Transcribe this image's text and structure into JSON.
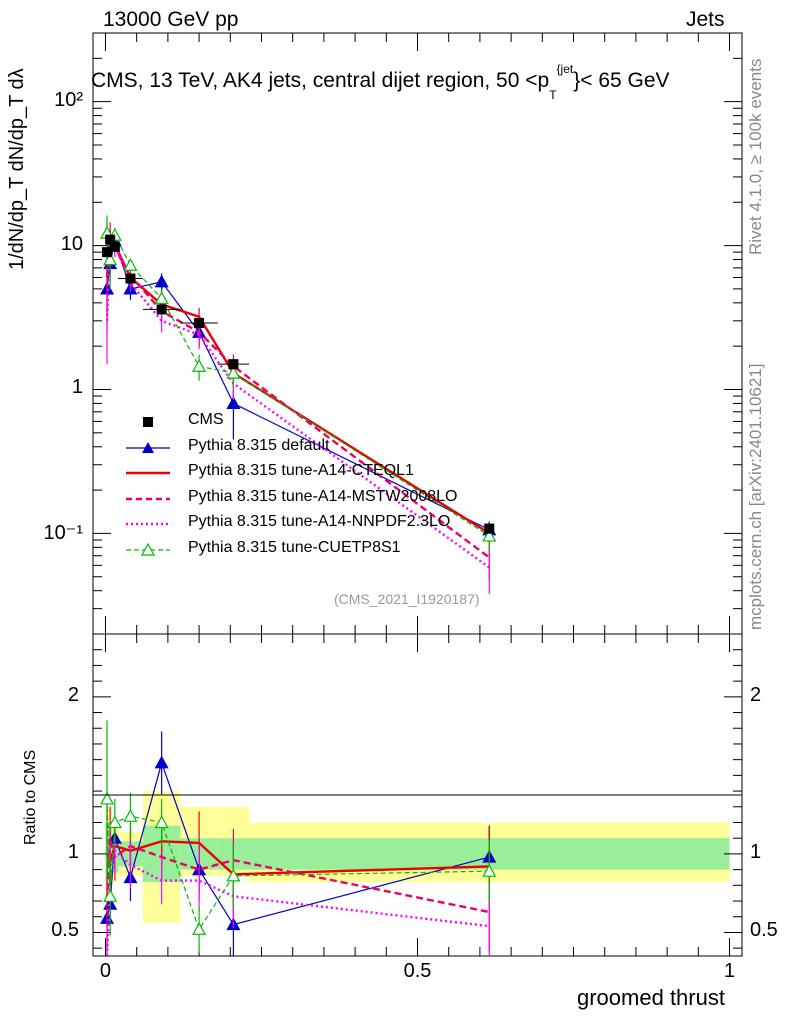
{
  "header": {
    "energy_label": "13000 GeV pp",
    "category_label": "Jets",
    "plot_title": "CMS, 13 TeV, AK4 jets, central dijet region, 50 <p",
    "plot_title_sub": "T",
    "plot_title_sup": "{jet",
    "plot_title_end": "}< 65 GeV",
    "analysis_id": "(CMS_2021_I1920187)"
  },
  "side_labels": {
    "rivet": "Rivet 4.1.0, ≥ 100k events",
    "mcplots": "mcplots.cern.ch [arXiv:2401.10621]"
  },
  "chart_data": [
    {
      "type": "line",
      "panel": "main",
      "ylabel": "1/dN/dp_T dN/dp_T dλ",
      "y_scale": "log",
      "ylim": [
        0.02,
        300
      ],
      "xlim": [
        -0.02,
        1.02
      ],
      "y_ticks": [
        {
          "value": 0.1,
          "label": "10⁻¹"
        },
        {
          "value": 1,
          "label": "1"
        },
        {
          "value": 10,
          "label": "10"
        },
        {
          "value": 100,
          "label": "10²"
        }
      ],
      "x": [
        0.0025,
        0.0075,
        0.015,
        0.04,
        0.09,
        0.15,
        0.205,
        0.615
      ],
      "cms_bin_edges": [
        0,
        0.005,
        0.01,
        0.02,
        0.06,
        0.12,
        0.18,
        0.23,
        1.0
      ],
      "series": [
        {
          "name": "CMS",
          "style": "data",
          "color": "#000000",
          "values": [
            9.0,
            11.0,
            9.8,
            5.9,
            3.6,
            2.9,
            1.5,
            0.108
          ]
        },
        {
          "name": "Pythia 8.315 default",
          "style": "solid-triangle",
          "color": "#0000cc",
          "values": [
            5.0,
            7.5,
            10.8,
            5.0,
            5.6,
            2.5,
            0.8,
            0.106
          ],
          "errors": [
            2.0,
            1.5,
            1.3,
            0.8,
            0.8,
            0.5,
            0.35,
            0.015
          ]
        },
        {
          "name": "Pythia 8.315 tune-A14-CTEQL1",
          "style": "solid",
          "color": "#ee0000",
          "values": [
            9.0,
            10.5,
            10.2,
            6.0,
            3.9,
            3.2,
            1.3,
            0.1
          ],
          "errors": [
            5.5,
            2.5,
            1.3,
            0.7,
            0.6,
            0.5,
            0.25,
            0.02
          ]
        },
        {
          "name": "Pythia 8.315 tune-A14-MSTW2008LO",
          "style": "dashed",
          "color": "#ee0066",
          "values": [
            6.0,
            12.0,
            9.6,
            6.2,
            3.5,
            2.5,
            1.45,
            0.068
          ],
          "errors": [
            3.5,
            2.5,
            1.3,
            0.7,
            0.6,
            0.5,
            0.3,
            0.02
          ]
        },
        {
          "name": "Pythia 8.315 tune-A14-NNPDF2.3LO",
          "style": "dotted",
          "color": "#ff00ff",
          "values": [
            3.0,
            9.5,
            10.0,
            5.5,
            3.0,
            2.4,
            1.1,
            0.058
          ],
          "errors": [
            1.5,
            2.0,
            1.3,
            0.7,
            0.5,
            0.5,
            0.25,
            0.02
          ]
        },
        {
          "name": "Pythia 8.315 tune-CUETP8S1",
          "style": "dashed-open-triangle",
          "color": "#00bb00",
          "values": [
            12.2,
            8.0,
            11.8,
            7.3,
            4.3,
            1.45,
            1.3,
            0.096
          ],
          "errors": [
            4.0,
            3.0,
            1.5,
            0.8,
            0.6,
            0.3,
            0.25,
            0.02
          ]
        }
      ]
    },
    {
      "type": "line",
      "panel": "ratio",
      "ylabel": "Ratio to CMS",
      "xlabel": "groomed thrust",
      "ylim": [
        0.35,
        2.4
      ],
      "xlim": [
        -0.02,
        1.02
      ],
      "x_ticks": [
        {
          "value": 0,
          "label": "0"
        },
        {
          "value": 0.5,
          "label": "0.5"
        },
        {
          "value": 1,
          "label": "1"
        }
      ],
      "y_ticks": [
        {
          "value": 0.5,
          "label": "0.5"
        },
        {
          "value": 1,
          "label": "1"
        },
        {
          "value": 2,
          "label": "2"
        }
      ],
      "x": [
        0.0025,
        0.0075,
        0.015,
        0.04,
        0.09,
        0.15,
        0.205,
        0.615
      ],
      "bands": {
        "bin_edges": [
          0,
          0.005,
          0.01,
          0.02,
          0.06,
          0.12,
          0.18,
          0.23,
          1.0
        ],
        "inner": [
          [
            0.8,
            1.2
          ],
          [
            0.8,
            1.2
          ],
          [
            0.88,
            1.12
          ],
          [
            0.92,
            1.08
          ],
          [
            0.82,
            1.18
          ],
          [
            0.9,
            1.1
          ],
          [
            0.9,
            1.1
          ],
          [
            0.9,
            1.1
          ]
        ],
        "outer": [
          [
            0.72,
            1.3
          ],
          [
            0.72,
            1.3
          ],
          [
            0.82,
            1.2
          ],
          [
            0.86,
            1.14
          ],
          [
            0.56,
            1.4
          ],
          [
            0.86,
            1.3
          ],
          [
            0.86,
            1.3
          ],
          [
            0.82,
            1.2
          ]
        ],
        "inner_color": "#99ee99",
        "outer_color": "#ffff99"
      },
      "series": [
        {
          "name": "Pythia 8.315 default",
          "color": "#0000cc",
          "values": [
            0.59,
            0.68,
            1.1,
            0.85,
            1.58,
            0.9,
            0.55,
            0.98
          ],
          "errors": [
            0.2,
            0.12,
            0.12,
            0.15,
            0.2,
            0.15,
            0.25,
            0.2
          ]
        },
        {
          "name": "Pythia 8.315 tune-A14-CTEQL1",
          "color": "#ee0000",
          "values": [
            1.0,
            0.95,
            1.05,
            1.02,
            1.08,
            1.07,
            0.87,
            0.92
          ],
          "errors": [
            0.4,
            0.2,
            0.15,
            0.12,
            0.15,
            0.2,
            0.2,
            0.25
          ]
        },
        {
          "name": "Pythia 8.315 tune-A14-MSTW2008LO",
          "color": "#ee0066",
          "values": [
            0.7,
            1.1,
            0.98,
            1.05,
            0.98,
            0.9,
            0.96,
            0.63
          ],
          "errors": [
            0.35,
            0.2,
            0.15,
            0.15,
            0.15,
            0.2,
            0.2,
            0.25
          ]
        },
        {
          "name": "Pythia 8.315 tune-A14-NNPDF2.3LO",
          "color": "#ff00ff",
          "values": [
            0.34,
            0.85,
            1.02,
            0.93,
            0.83,
            0.83,
            0.73,
            0.54
          ],
          "errors": [
            0.2,
            0.2,
            0.15,
            0.15,
            0.15,
            0.2,
            0.2,
            0.2
          ]
        },
        {
          "name": "Pythia 8.315 tune-CUETP8S1",
          "color": "#00bb00",
          "values": [
            1.35,
            0.73,
            1.2,
            1.24,
            1.2,
            0.52,
            0.86,
            0.89
          ],
          "errors": [
            0.5,
            0.25,
            0.15,
            0.15,
            0.15,
            0.15,
            0.2,
            0.2
          ]
        }
      ]
    }
  ]
}
